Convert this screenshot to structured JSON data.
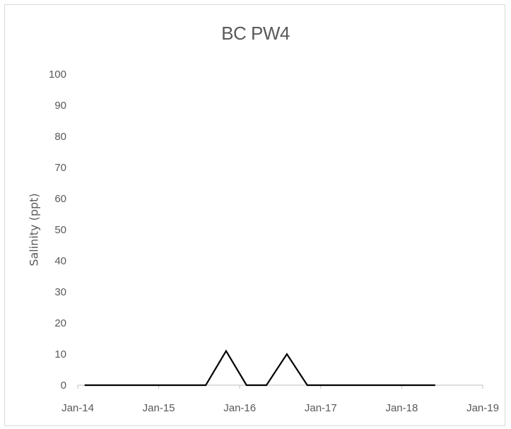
{
  "chart_data": {
    "type": "line",
    "title": "BC PW4",
    "xlabel": "",
    "ylabel": "Salinity (ppt)",
    "x_ticks": [
      "Jan-14",
      "Jan-15",
      "Jan-16",
      "Jan-17",
      "Jan-18",
      "Jan-19"
    ],
    "x_range": [
      "2014-01-01",
      "2019-01-01"
    ],
    "y_ticks": [
      0,
      10,
      20,
      30,
      40,
      50,
      60,
      70,
      80,
      90,
      100
    ],
    "ylim": [
      0,
      100
    ],
    "grid": false,
    "legend": "none",
    "line_color": "#000000",
    "series": [
      {
        "x": [
          "2014-02-01",
          "2015-08-01",
          "2015-11-01",
          "2016-02-01",
          "2016-05-01",
          "2016-08-01",
          "2016-11-01",
          "2018-06-01"
        ],
        "values": [
          0,
          0,
          11,
          0,
          0,
          10,
          0,
          0
        ]
      }
    ]
  }
}
